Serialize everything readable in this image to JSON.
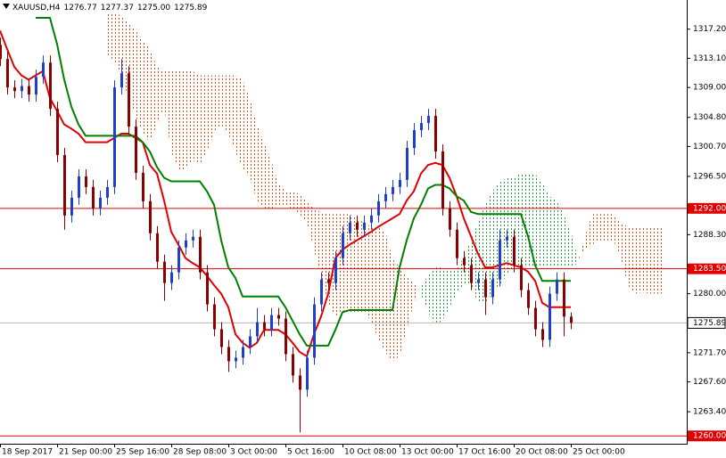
{
  "chart_data": {
    "type": "candlestick",
    "header": {
      "symbol": "XAUUSD,H4",
      "ohlc": [
        "1276.77",
        "1277.37",
        "1275.00",
        "1275.89"
      ]
    },
    "categories": [
      "18 Sep 2017",
      null,
      null,
      null,
      null,
      null,
      null,
      null,
      "21 Sep 00:00",
      null,
      null,
      null,
      null,
      null,
      null,
      null,
      "25 Sep 16:00",
      null,
      null,
      null,
      null,
      null,
      null,
      null,
      "28 Sep 08:00",
      null,
      null,
      null,
      null,
      null,
      null,
      null,
      "3 Oct 00:00",
      null,
      null,
      null,
      null,
      null,
      null,
      null,
      "5 Oct 16:00",
      null,
      null,
      null,
      null,
      null,
      null,
      null,
      "10 Oct 08:00",
      null,
      null,
      null,
      null,
      null,
      null,
      null,
      "13 Oct 00:00",
      null,
      null,
      null,
      null,
      null,
      null,
      null,
      "17 Oct 16:00",
      null,
      null,
      null,
      null,
      null,
      null,
      null,
      "20 Oct 08:00",
      null,
      null,
      null,
      null,
      null,
      null,
      null,
      "25 Oct 00:00",
      null,
      null,
      null,
      null,
      null,
      null,
      null,
      null,
      null,
      null,
      null,
      null,
      null
    ],
    "open": [
      1315,
      1313,
      1309,
      1308.5,
      1309.2,
      1308,
      1310.5,
      1312.5,
      1306,
      1299.5,
      1291,
      1293.5,
      1296.5,
      1295,
      1292,
      1293.5,
      1295,
      1309,
      1311,
      1303.5,
      1297,
      1293,
      1288.5,
      1284.5,
      1281.5,
      1283,
      1286.5,
      1287.5,
      1288,
      1283,
      1278.5,
      1275,
      1272.5,
      1270.5,
      1271,
      1272.5,
      1274,
      1276,
      1275,
      1277,
      1276.5,
      1271.5,
      1268.5,
      1266.5,
      1271,
      1278.5,
      1282,
      1281.5,
      1285,
      1288.5,
      1290,
      1289,
      1290,
      1291,
      1293,
      1294,
      1295,
      1296,
      1300.5,
      1303,
      1304,
      1305,
      1300,
      1292,
      1289,
      1285,
      1284,
      1281.5,
      1282,
      1279.5,
      1282,
      1287.5,
      1288,
      1284,
      1280.5,
      1278,
      1275,
      1273.5,
      1280,
      1282,
      1276.77,
      null,
      null,
      null,
      null,
      null,
      null,
      null,
      null,
      null,
      null,
      null,
      null,
      null
    ],
    "high": [
      1316,
      1314,
      1310,
      1310.2,
      1310.2,
      1311.5,
      1313.5,
      1313.5,
      1307,
      1300.5,
      1294.5,
      1297.5,
      1297.5,
      1296,
      1294.5,
      1296,
      1310,
      1313,
      1312,
      1304.5,
      1298,
      1294,
      1289.5,
      1285.5,
      1284,
      1287.5,
      1288.5,
      1289,
      1289,
      1284,
      1279.5,
      1276,
      1273.5,
      1272,
      1273.5,
      1275,
      1278,
      1277,
      1278,
      1278,
      1277.5,
      1272.5,
      1269.5,
      1272,
      1279.5,
      1283,
      1283,
      1286,
      1289.5,
      1291,
      1291,
      1291,
      1292,
      1294,
      1295,
      1296,
      1297,
      1301.5,
      1304,
      1305,
      1306,
      1306,
      1301,
      1293,
      1290,
      1286,
      1285,
      1283,
      1283,
      1283,
      1289,
      1289,
      1289,
      1285,
      1281.5,
      1279,
      1276,
      1281,
      1283,
      1283,
      1277.37,
      null,
      null,
      null,
      null,
      null,
      null,
      null,
      null,
      null,
      null,
      null,
      null,
      null
    ],
    "low": [
      1312,
      1308,
      1307.5,
      1307.5,
      1307,
      1307,
      1309.5,
      1305,
      1298.5,
      1289,
      1290,
      1292.5,
      1294,
      1291,
      1291,
      1292.5,
      1294,
      1308,
      1302.5,
      1296,
      1292,
      1287.5,
      1283.5,
      1279,
      1280.5,
      1282,
      1285.5,
      1286.5,
      1282,
      1277.5,
      1274,
      1271.5,
      1269,
      1269.5,
      1270,
      1271.5,
      1273,
      1274,
      1274,
      1275.5,
      1270.5,
      1267.5,
      1260.5,
      1265.5,
      1270,
      1277.5,
      1280.5,
      1280.5,
      1284,
      1287.5,
      1288,
      1288,
      1289,
      1290,
      1292,
      1293,
      1294,
      1295,
      1299.5,
      1302,
      1303,
      1299,
      1291,
      1288,
      1284,
      1283,
      1280.5,
      1280.5,
      1277,
      1278.5,
      1281,
      1286.5,
      1283,
      1279.5,
      1277,
      1274,
      1272.5,
      1272.5,
      1279,
      1274,
      1275,
      null,
      null,
      null,
      null,
      null,
      null,
      null,
      null,
      null,
      null,
      null,
      null,
      null
    ],
    "close": [
      1313,
      1309,
      1308.5,
      1309.2,
      1308,
      1310.5,
      1312.5,
      1306,
      1299.5,
      1291,
      1293.5,
      1296.5,
      1295,
      1292,
      1293.5,
      1295,
      1309,
      1311,
      1303.5,
      1297,
      1293,
      1288.5,
      1284.5,
      1281.5,
      1283,
      1286.5,
      1287.5,
      1288,
      1283,
      1278.5,
      1275,
      1272.5,
      1270.5,
      1271,
      1272.5,
      1274,
      1276,
      1275,
      1277,
      1276.5,
      1271.5,
      1268.5,
      1266.5,
      1271,
      1278.5,
      1282,
      1281.5,
      1285,
      1288.5,
      1290,
      1289,
      1290,
      1291,
      1293,
      1294,
      1295,
      1296,
      1300.5,
      1303,
      1304,
      1305,
      1300,
      1292,
      1289,
      1285,
      1284,
      1281.5,
      1282,
      1279.5,
      1282,
      1287.5,
      1288,
      1284,
      1280.5,
      1278,
      1275,
      1273.5,
      1280,
      1282,
      1276.77,
      1275.89,
      null,
      null,
      null,
      null,
      null,
      null,
      null,
      null,
      null,
      null,
      null,
      null,
      null
    ],
    "up_color": "#1f3fd0",
    "down_color": "#8b0000",
    "lines": [
      {
        "color": "#e00000",
        "values": [
          1317.0,
          1314.4,
          1311.9,
          1310.7,
          1310.1,
          1310.7,
          1311.3,
          1307.5,
          1305.7,
          1303.8,
          1303.2,
          1302.5,
          1301.3,
          1301.3,
          1301.3,
          1301.3,
          1301.9,
          1302.5,
          1302.5,
          1301.9,
          1301.3,
          1298.1,
          1296.9,
          1293.1,
          1288.7,
          1286.9,
          1285.0,
          1284.3,
          1283.7,
          1282.5,
          1281.2,
          1280.0,
          1278.1,
          1274.3,
          1273.1,
          1272.4,
          1273.1,
          1274.9,
          1274.9,
          1274.9,
          1274.3,
          1273.1,
          1271.8,
          1271.2,
          1274.3,
          1276.8,
          1280.0,
          1285.0,
          1286.2,
          1286.9,
          1287.5,
          1288.1,
          1288.7,
          1289.4,
          1290.0,
          1290.6,
          1291.2,
          1293.1,
          1294.4,
          1296.9,
          1298.1,
          1298.4,
          1298.1,
          1296.3,
          1293.7,
          1290.6,
          1288.1,
          1285.6,
          1283.7,
          1283.7,
          1284.0,
          1284.3,
          1284.0,
          1283.7,
          1283.1,
          1281.8,
          1278.7,
          1278.1,
          1278.1,
          1278.1,
          1278.1,
          null,
          null,
          null,
          null,
          null,
          null,
          null,
          null,
          null,
          null,
          null,
          null,
          null
        ]
      },
      {
        "color": "#008000",
        "values": [
          null,
          null,
          null,
          null,
          null,
          1318.8,
          1318.8,
          1318.8,
          1315.1,
          1310.1,
          1306.3,
          1303.8,
          1302.2,
          1302.2,
          1302.2,
          1302.2,
          1302.2,
          1302.2,
          1302.2,
          1302.2,
          1301.3,
          1300.0,
          1297.8,
          1296.3,
          1295.8,
          1295.8,
          1295.8,
          1295.8,
          1295.8,
          1294.4,
          1292.5,
          1287.5,
          1283.7,
          1282.2,
          1279.6,
          1279.6,
          1279.6,
          1279.6,
          1279.6,
          1279.6,
          1278.1,
          1276.2,
          1274.3,
          1272.7,
          1272.7,
          1272.7,
          1272.7,
          1274.9,
          1277.4,
          1277.7,
          1277.7,
          1277.7,
          1277.7,
          1277.7,
          1277.7,
          1277.7,
          1283.7,
          1287.5,
          1290.6,
          1292.5,
          1294.8,
          1295.3,
          1295.3,
          1294.8,
          1293.7,
          1293.1,
          1291.5,
          1291.2,
          1291.2,
          1291.2,
          1291.2,
          1291.2,
          1291.2,
          1291.2,
          1288.1,
          1284.0,
          1281.8,
          1281.8,
          1281.8,
          1281.8,
          1281.8,
          null,
          null,
          null,
          null,
          null,
          null,
          null,
          null,
          null,
          null,
          null,
          null,
          null
        ]
      }
    ],
    "spans": [
      {
        "values": [
          null,
          null,
          null,
          null,
          null,
          null,
          null,
          null,
          null,
          null,
          null,
          null,
          null,
          null,
          null,
          1313.8,
          1312.6,
          1310.7,
          1307.5,
          1305.0,
          1302.5,
          1301.3,
          1303.8,
          1306.3,
          1300.0,
          1297.5,
          1297.5,
          1298.8,
          1298.1,
          1300.0,
          1302.5,
          1303.8,
          1302.5,
          1300.0,
          1297.5,
          1296.3,
          1293.1,
          1291.9,
          1291.9,
          1292.5,
          1292.5,
          1291.9,
          1291.2,
          1290.0,
          1286.2,
          1282.5,
          1278.7,
          1276.8,
          1277.4,
          1277.4,
          1277.4,
          1277.4,
          1276.2,
          1273.7,
          1271.8,
          1270.5,
          1271.2,
          1274.9,
          1278.7,
          1281.2,
          1282.5,
          1283.7,
          1283.7,
          1283.1,
          1283.7,
          1285.0,
          1287.5,
          1290.0,
          1292.5,
          1294.4,
          1295.6,
          1296.3,
          1296.3,
          1296.9,
          1296.9,
          1296.9,
          1295.6,
          1293.7,
          1293.1,
          1291.2,
          1288.7,
          1285.0,
          1286.2,
          1286.9,
          1287.5,
          1287.5,
          1287.5,
          1285.0,
          1281.2,
          1280.0,
          1280.2,
          1280.0,
          1280.0,
          1280.0
        ]
      },
      {
        "values": [
          null,
          null,
          null,
          null,
          null,
          null,
          null,
          null,
          null,
          null,
          null,
          null,
          null,
          null,
          null,
          1319.5,
          1319.5,
          1319.1,
          1318.2,
          1317.0,
          1315.7,
          1314.4,
          1311.9,
          1311.3,
          1311.3,
          1311.3,
          1311.3,
          1311.3,
          1310.7,
          1310.7,
          1310.7,
          1310.7,
          1310.7,
          1310.7,
          1310.1,
          1307.5,
          1303.8,
          1301.3,
          1298.8,
          1295.6,
          1294.4,
          1294.4,
          1294.0,
          1293.1,
          1291.9,
          1291.5,
          1291.2,
          1291.2,
          1291.2,
          1291.2,
          1290.6,
          1290.0,
          1289.4,
          1289.4,
          1288.7,
          1285.0,
          1283.7,
          1282.5,
          1281.5,
          1280.0,
          1277.4,
          1275.6,
          1276.2,
          1278.1,
          1280.0,
          1281.2,
          1281.2,
          1278.7,
          1278.7,
          1280.0,
          1281.2,
          1282.5,
          1283.7,
          1283.7,
          1283.7,
          1283.7,
          1283.7,
          1283.7,
          1283.7,
          1283.7,
          1283.7,
          1284.3,
          1288.1,
          1291.2,
          1291.2,
          1291.2,
          1291.2,
          1290.0,
          1289.4,
          1289.4,
          1289.4,
          1289.4,
          1289.4,
          1289.4
        ]
      }
    ],
    "bull_color": "#2a9a4a",
    "bear_color": "#e0501a",
    "hlines": [
      {
        "value": 1292,
        "label": "1292.00",
        "color": "#e00000"
      },
      {
        "value": 1283.5,
        "label": "1283.50",
        "color": "#e00000"
      },
      {
        "value": 1260,
        "label": "1260.00",
        "color": "#e00000"
      }
    ],
    "current_price": {
      "value": 1275.89,
      "label": "1275.89",
      "color": "#b4b4b4"
    },
    "ylim": [
      1258.9,
      1321.3
    ],
    "yticks": [
      {
        "value": 1317.2,
        "label": "1317.20"
      },
      {
        "value": 1313.1,
        "label": "1313.10"
      },
      {
        "value": 1309,
        "label": "1309.00"
      },
      {
        "value": 1304.8,
        "label": "1304.80"
      },
      {
        "value": 1300.7,
        "label": "1300.70"
      },
      {
        "value": 1296.5,
        "label": "1296.50"
      },
      {
        "value": 1288.3,
        "label": "1288.30"
      },
      {
        "value": 1280,
        "label": "1280.00"
      },
      {
        "value": 1271.7,
        "label": "1271.70"
      },
      {
        "value": 1267.6,
        "label": "1267.60"
      },
      {
        "value": 1263.4,
        "label": "1263.40"
      }
    ]
  }
}
